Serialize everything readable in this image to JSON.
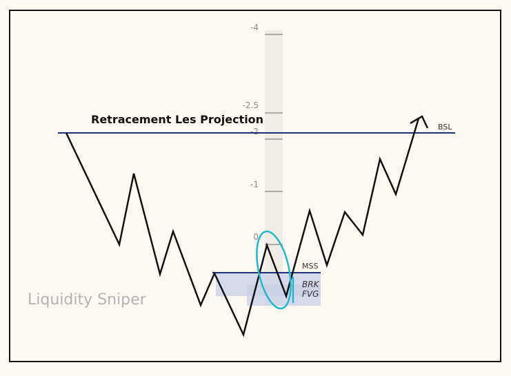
{
  "title": "Retracement Les Projection",
  "watermark": "Liquidity Sniper",
  "fib_levels": [
    "-4",
    "-2.5",
    "-2",
    "-1",
    "0"
  ],
  "labels": {
    "bsl": "BSL",
    "mss": "MSS",
    "brk": "BRK",
    "fvg": "FVG"
  },
  "colors": {
    "background": "#fbf8f2",
    "frame": "#111111",
    "price_path": "#111111",
    "liquidity_line": "#1b2f78",
    "highlight_ellipse": "#1fb8cf",
    "zone_fill": "#c9cfe6",
    "fib_ruler": "#efece6",
    "fib_text": "#8a8a8a",
    "watermark": "#b3b3b3"
  }
}
